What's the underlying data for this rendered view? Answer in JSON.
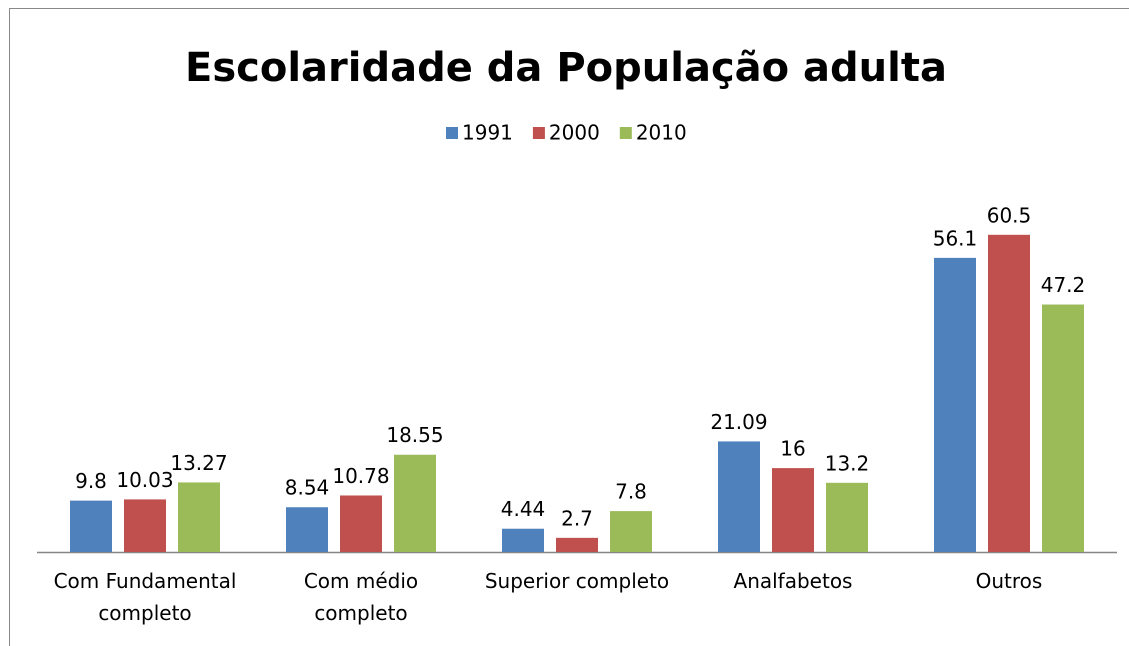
{
  "chart_data": {
    "type": "bar",
    "title": "Escolaridade da População adulta",
    "categories": [
      "Com Fundamental\ncompleto",
      "Com médio\ncompleto",
      "Superior completo",
      "Analfabetos",
      "Outros"
    ],
    "series": [
      {
        "name": "1991",
        "color": "#4f81bd",
        "values": [
          9.8,
          8.54,
          4.44,
          21.09,
          56.1
        ]
      },
      {
        "name": "2000",
        "color": "#c0504d",
        "values": [
          10.03,
          10.78,
          2.7,
          16,
          60.5
        ]
      },
      {
        "name": "2010",
        "color": "#9bbb59",
        "values": [
          13.27,
          18.55,
          7.8,
          13.2,
          47.2
        ]
      }
    ],
    "ylim": [
      0,
      70
    ]
  }
}
